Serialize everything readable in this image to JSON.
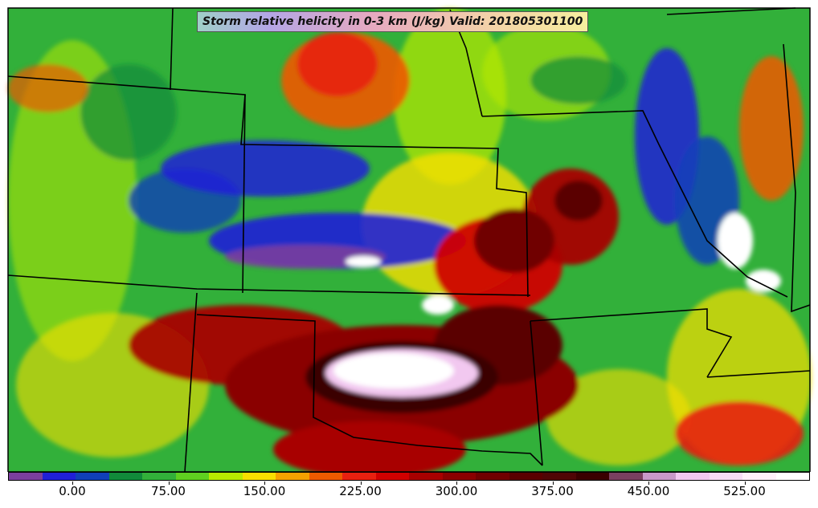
{
  "title": "Storm relative helicity in 0-3 km (J/kg) Valid: 201805301100",
  "colorbar": {
    "colors": [
      "#7b3f9e",
      "#2020d8",
      "#1040b8",
      "#118a3a",
      "#32b03a",
      "#5fd020",
      "#b8ea00",
      "#f7df00",
      "#f5a200",
      "#ee5a00",
      "#e82010",
      "#d00000",
      "#a80000",
      "#8a0000",
      "#700000",
      "#5a0000",
      "#500505",
      "#3a0000",
      "#7a4060",
      "#c898c8",
      "#f2c8f0",
      "#f7dcf5",
      "#fff0fa",
      "#ffffff"
    ],
    "tick_labels": [
      "0.00",
      "75.00",
      "150.00",
      "225.00",
      "300.00",
      "375.00",
      "450.00",
      "525.00"
    ]
  },
  "legend_values_shown": "0.00 to 525.00 J/kg",
  "map_regions": {
    "background_color": "#32b03a",
    "border_color": "#000000"
  }
}
